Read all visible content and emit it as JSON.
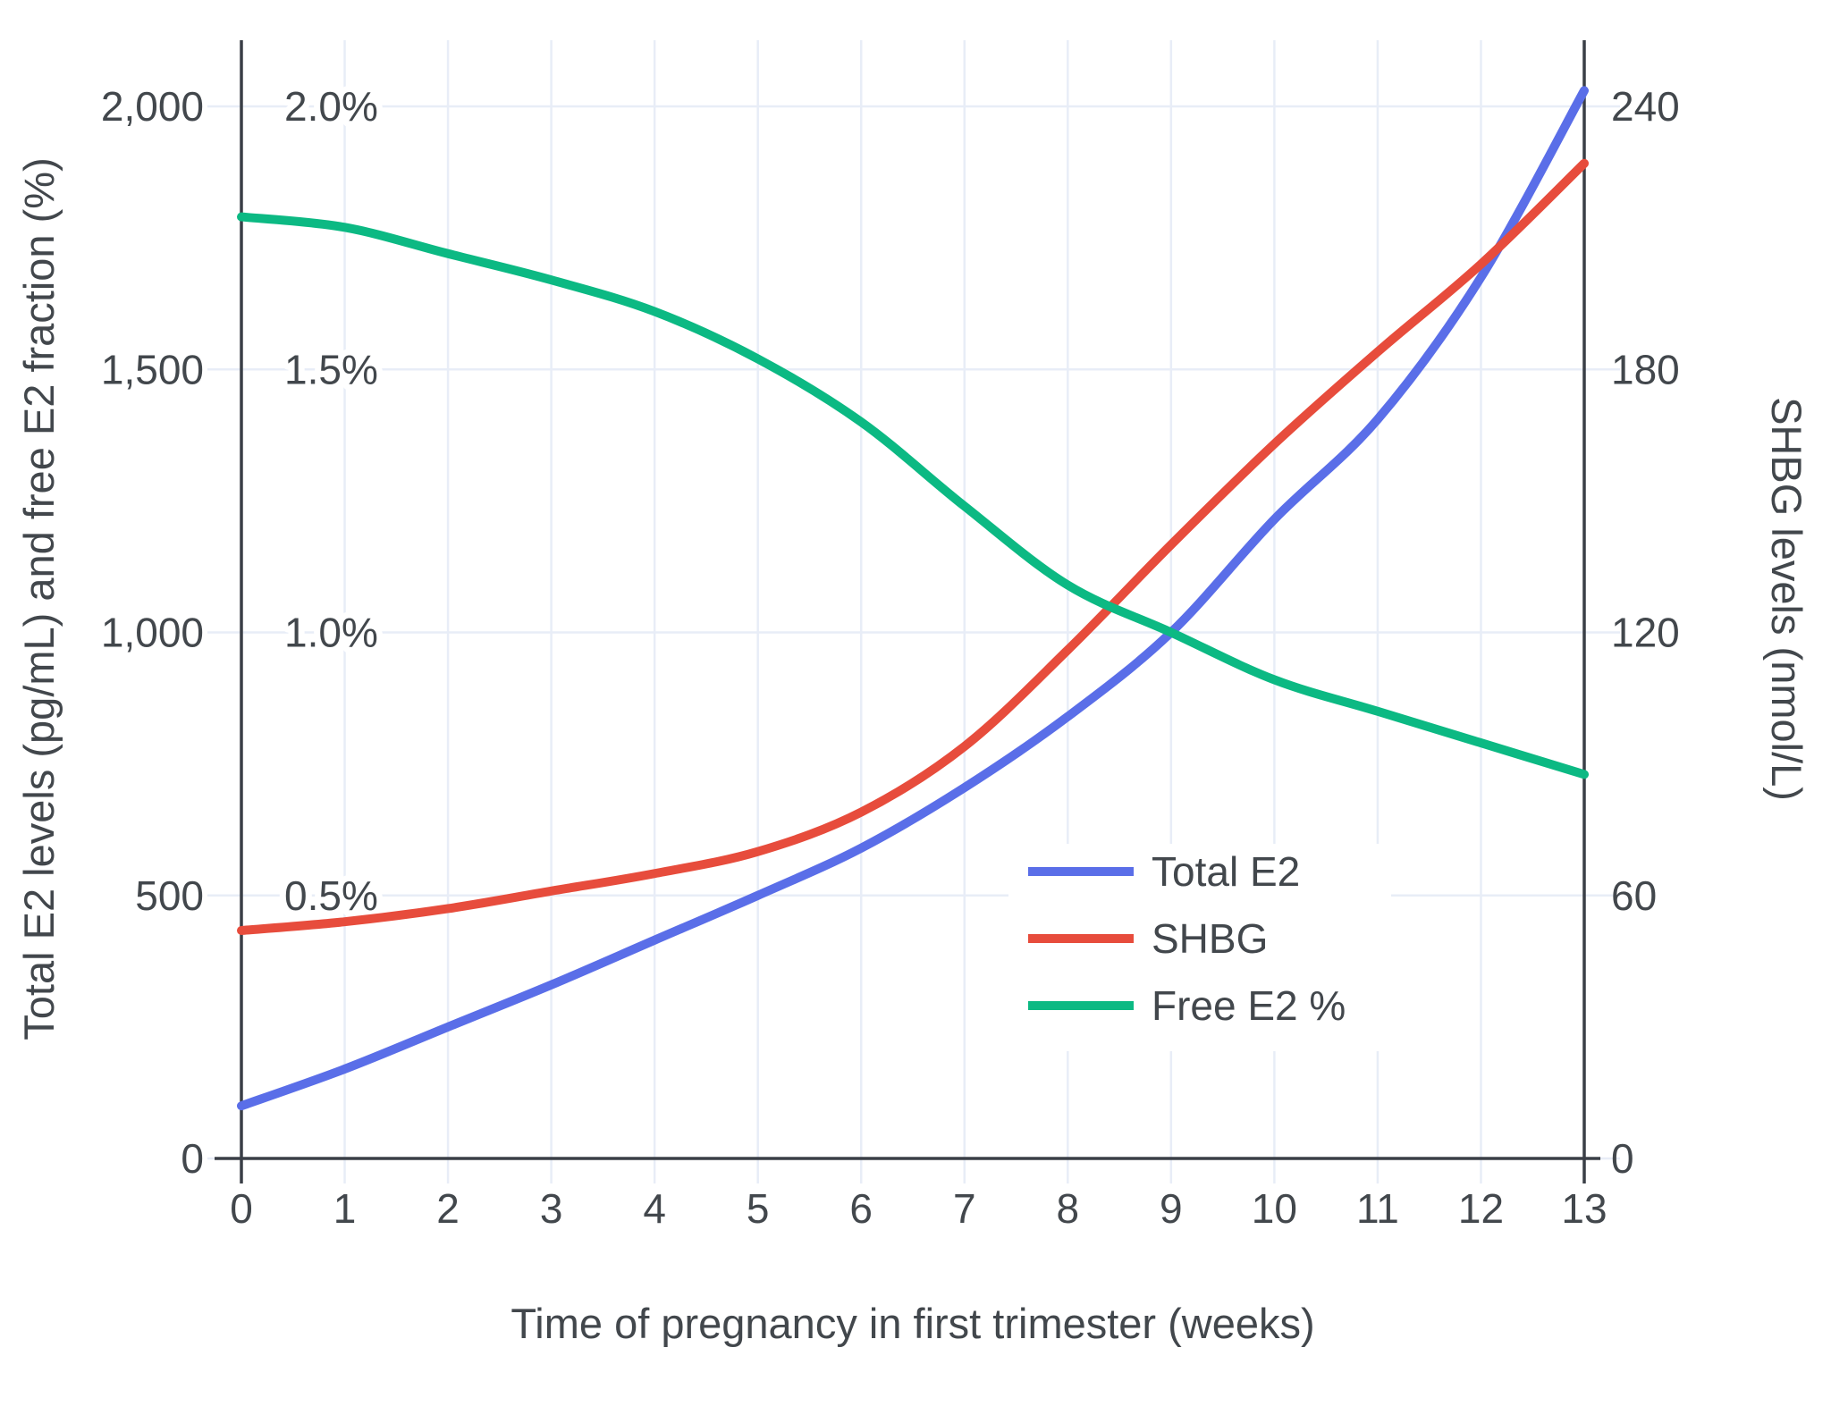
{
  "chart_data": {
    "type": "line",
    "title": "",
    "xlabel": "Time of pregnancy in first trimester (weeks)",
    "ylabel_left": "Total E2 levels (pg/mL) and free E2 fraction (%)",
    "ylabel_right": "SHBG levels (nmol/L)",
    "xlim": [
      0,
      13
    ],
    "ylim_left": [
      0,
      2125
    ],
    "ylim_right": [
      0,
      255
    ],
    "grid": true,
    "legend_position": "inside-lower-right",
    "x": [
      0,
      1,
      2,
      3,
      4,
      5,
      6,
      7,
      8,
      9,
      10,
      11,
      12,
      13
    ],
    "x_tick_labels": [
      "0",
      "1",
      "2",
      "3",
      "4",
      "5",
      "6",
      "7",
      "8",
      "9",
      "10",
      "11",
      "12",
      "13"
    ],
    "left_ticks": [
      {
        "value": 0,
        "label": "0"
      },
      {
        "value": 500,
        "label": "500"
      },
      {
        "value": 1000,
        "label": "1,000"
      },
      {
        "value": 1500,
        "label": "1,500"
      },
      {
        "value": 2000,
        "label": "2,000"
      }
    ],
    "percent_ticks": [
      {
        "value": 0.5,
        "label": "0.5%"
      },
      {
        "value": 1.0,
        "label": "1.0%"
      },
      {
        "value": 1.5,
        "label": "1.5%"
      },
      {
        "value": 2.0,
        "label": "2.0%"
      }
    ],
    "right_ticks": [
      {
        "value": 0,
        "label": "0"
      },
      {
        "value": 60,
        "label": "60"
      },
      {
        "value": 120,
        "label": "120"
      },
      {
        "value": 180,
        "label": "180"
      },
      {
        "value": 240,
        "label": "240"
      }
    ],
    "series": [
      {
        "name": "Total E2",
        "axis": "left",
        "units": "pg/mL",
        "color": "#5a6ee8",
        "values": [
          100,
          170,
          250,
          330,
          415,
          500,
          590,
          705,
          840,
          1000,
          1215,
          1405,
          1675,
          2030
        ]
      },
      {
        "name": "SHBG",
        "axis": "right",
        "units": "nmol/L",
        "color": "#e74c3c",
        "values": [
          52,
          54,
          57,
          61,
          65,
          70,
          79,
          94,
          116,
          140,
          163,
          184,
          204,
          227
        ]
      },
      {
        "name": "Free E2 %",
        "axis": "percent",
        "units": "%",
        "color": "#0cb983",
        "values": [
          1.79,
          1.77,
          1.72,
          1.67,
          1.61,
          1.52,
          1.4,
          1.24,
          1.09,
          1.0,
          0.91,
          0.85,
          0.79,
          0.73
        ]
      }
    ],
    "colors": {
      "grid": "#e8edf7",
      "axis": "#3a3f47",
      "text": "#42474c",
      "background": "#ffffff",
      "total_e2": "#5a6ee8",
      "shbg": "#e74c3c",
      "free_e2": "#0cb983"
    }
  }
}
